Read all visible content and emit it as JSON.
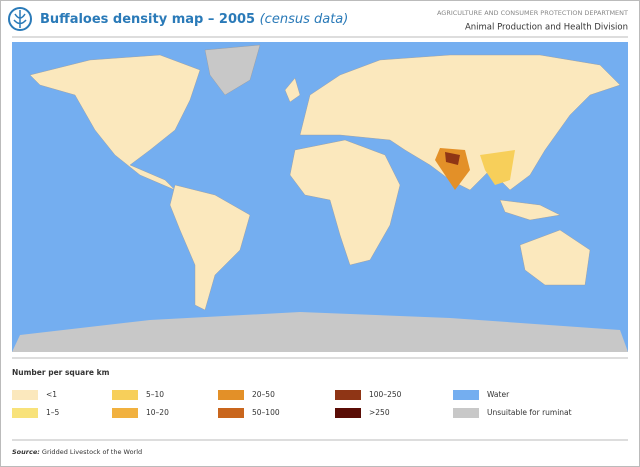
{
  "header": {
    "title": "Buffaloes density map – 2005",
    "subtitle": "(census data)",
    "department": "AGRICULTURE AND CONSUMER PROTECTION DEPARTMENT",
    "division": "Animal Production and Health Division"
  },
  "legend": {
    "title": "Number per square km",
    "items": [
      {
        "label": "<1",
        "color": "#fbe8bd"
      },
      {
        "label": "1–5",
        "color": "#f8e27a"
      },
      {
        "label": "5–10",
        "color": "#f7cf5a"
      },
      {
        "label": "10–20",
        "color": "#f1b13f"
      },
      {
        "label": "20–50",
        "color": "#e39028"
      },
      {
        "label": "50–100",
        "color": "#c9661d"
      },
      {
        "label": "100–250",
        "color": "#8f3515"
      },
      {
        "label": ">250",
        "color": "#5a0d06"
      },
      {
        "label": "Water",
        "color": "#74aef0"
      },
      {
        "label": "Unsuitable for ruminat",
        "color": "#c8c8c8"
      }
    ]
  },
  "footer": {
    "source_label": "Source:",
    "source_text": "Gridded Livestock of the World"
  }
}
